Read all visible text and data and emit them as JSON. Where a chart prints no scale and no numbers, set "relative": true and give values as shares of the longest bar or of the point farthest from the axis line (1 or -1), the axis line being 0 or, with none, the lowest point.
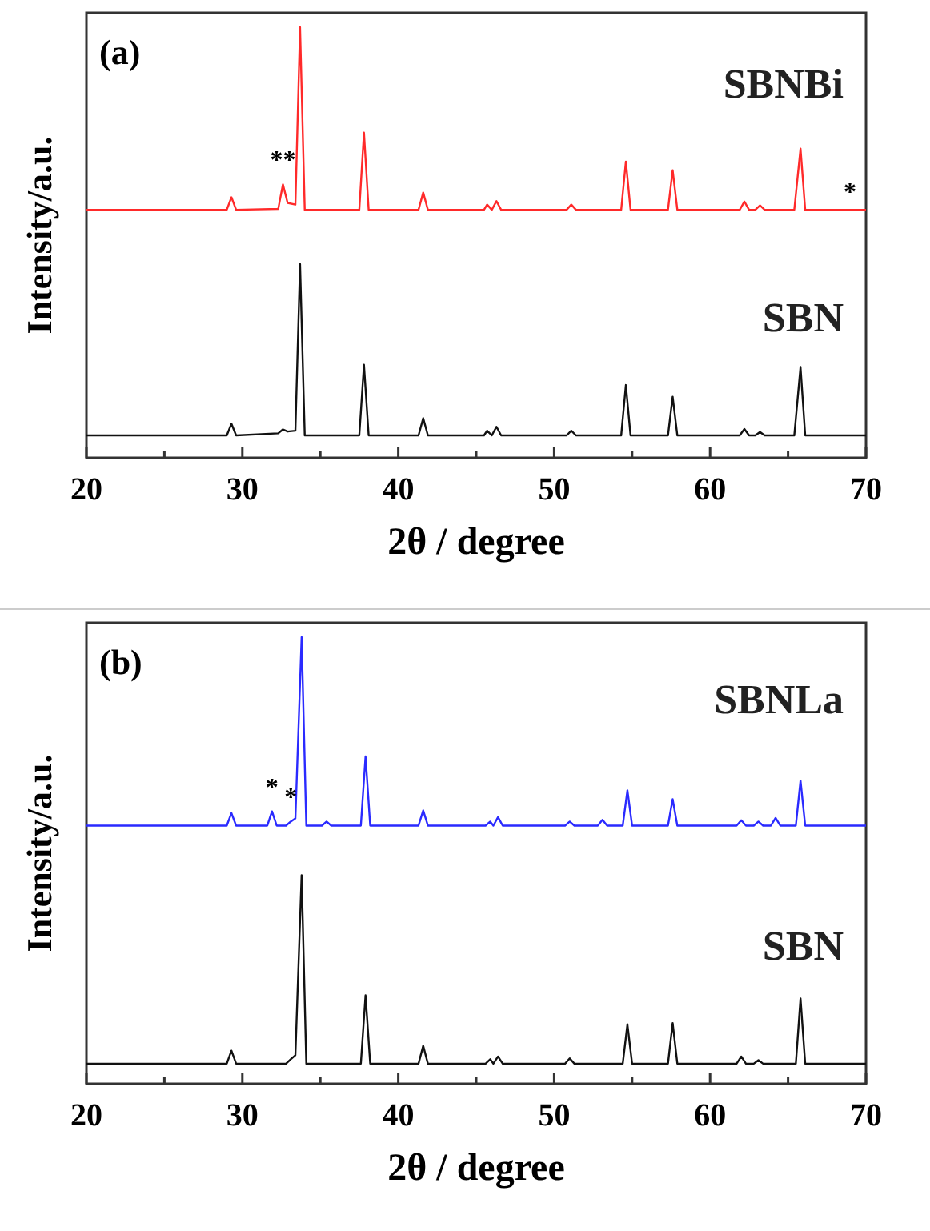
{
  "chart_data": [
    {
      "type": "line",
      "title": "(a)",
      "xlabel": "2θ / degree",
      "ylabel": "Intensity/a.u.",
      "relative": true,
      "legend": false,
      "tick_labels": "x",
      "marker": "none",
      "line_style": "solid",
      "xlim": [
        20,
        70
      ],
      "xticks": [
        20,
        {
          "value": 25,
          "label": null
        },
        30,
        {
          "value": 35,
          "label": null
        },
        40,
        {
          "value": 45,
          "label": null
        },
        50,
        {
          "value": 55,
          "label": null
        },
        60,
        {
          "value": 65,
          "label": null
        },
        70
      ],
      "x": [
        20,
        29.0,
        29.3,
        29.6,
        32.3,
        32.6,
        32.9,
        33.4,
        33.7,
        34.0,
        37.5,
        37.8,
        38.1,
        41.3,
        41.6,
        41.9,
        45.5,
        45.7,
        46.0,
        46.3,
        46.6,
        50.8,
        51.1,
        51.4,
        54.3,
        54.6,
        54.9,
        57.3,
        57.6,
        57.9,
        61.9,
        62.2,
        62.5,
        62.9,
        63.2,
        63.5,
        65.4,
        65.8,
        66.1,
        70
      ],
      "series": [
        {
          "name": "SBNBi",
          "color": "#ff2a2a",
          "values": [
            0.576,
            0.576,
            0.605,
            0.576,
            0.578,
            0.635,
            0.592,
            0.588,
            1,
            0.576,
            0.576,
            0.755,
            0.576,
            0.576,
            0.616,
            0.576,
            0.576,
            0.588,
            0.576,
            0.596,
            0.576,
            0.576,
            0.588,
            0.576,
            0.576,
            0.688,
            0.576,
            0.576,
            0.668,
            0.576,
            0.576,
            0.595,
            0.576,
            0.576,
            0.586,
            0.576,
            0.576,
            0.718,
            0.576,
            0.576
          ]
        },
        {
          "name": "SBN",
          "color": "#111111",
          "values": [
            0.052,
            0.052,
            0.079,
            0.052,
            0.057,
            0.066,
            0.061,
            0.063,
            0.45,
            0.052,
            0.052,
            0.216,
            0.052,
            0.052,
            0.092,
            0.052,
            0.052,
            0.063,
            0.052,
            0.072,
            0.052,
            0.052,
            0.063,
            0.052,
            0.052,
            0.169,
            0.052,
            0.052,
            0.142,
            0.052,
            0.052,
            0.067,
            0.052,
            0.052,
            0.06,
            0.052,
            0.052,
            0.211,
            0.052,
            0.052
          ]
        }
      ],
      "annotations": [
        {
          "text": "**",
          "x": 32.6,
          "y": 0.635
        },
        "*"
      ]
    },
    {
      "type": "line",
      "title": "(b)",
      "xlabel": "2θ / degree",
      "ylabel": "Intensity/a.u.",
      "relative": true,
      "legend": false,
      "tick_labels": "x",
      "marker": "none",
      "line_style": "solid",
      "xlim": [
        20,
        70
      ],
      "xticks": [
        20,
        {
          "value": 25,
          "label": null
        },
        30,
        {
          "value": 35,
          "label": null
        },
        40,
        {
          "value": 45,
          "label": null
        },
        50,
        {
          "value": 55,
          "label": null
        },
        60,
        {
          "value": 65,
          "label": null
        },
        70
      ],
      "x": [
        20,
        29.0,
        29.3,
        29.6,
        31.6,
        31.9,
        32.2,
        32.8,
        33.1,
        33.4,
        33.8,
        34.1,
        35.1,
        35.4,
        35.7,
        37.6,
        37.9,
        38.2,
        41.3,
        41.6,
        41.9,
        45.6,
        45.9,
        46.1,
        46.4,
        46.7,
        50.7,
        51.0,
        51.3,
        52.8,
        53.1,
        53.4,
        54.4,
        54.7,
        55.0,
        57.3,
        57.6,
        57.9,
        61.7,
        62.0,
        62.3,
        62.8,
        63.1,
        63.4,
        63.9,
        64.2,
        64.5,
        65.5,
        65.8,
        66.1,
        70
      ],
      "series": [
        {
          "name": "SBNLa",
          "color": "#2a2aff",
          "values": [
            0.578,
            0.578,
            0.606,
            0.578,
            0.578,
            0.61,
            0.578,
            0.578,
            0.587,
            0.594,
            1,
            0.578,
            0.578,
            0.587,
            0.578,
            0.578,
            0.733,
            0.578,
            0.578,
            0.612,
            0.578,
            0.578,
            0.587,
            0.578,
            0.597,
            0.578,
            0.578,
            0.587,
            0.578,
            0.578,
            0.591,
            0.578,
            0.578,
            0.657,
            0.578,
            0.578,
            0.637,
            0.578,
            0.578,
            0.59,
            0.578,
            0.578,
            0.587,
            0.578,
            0.578,
            0.595,
            0.578,
            0.578,
            0.679,
            0.578,
            0.578
          ]
        },
        {
          "name": "SBN",
          "color": "#111111",
          "values": [
            0.045,
            0.045,
            0.074,
            0.045,
            0.045,
            0.045,
            0.045,
            0.045,
            0.055,
            0.064,
            0.467,
            0.045,
            0.045,
            0.045,
            0.045,
            0.045,
            0.198,
            0.045,
            0.045,
            0.085,
            0.045,
            0.045,
            0.055,
            0.045,
            0.061,
            0.045,
            0.045,
            0.057,
            0.045,
            0.045,
            0.045,
            0.045,
            0.045,
            0.133,
            0.045,
            0.045,
            0.136,
            0.045,
            0.045,
            0.061,
            0.045,
            0.045,
            0.053,
            0.045,
            0.045,
            0.045,
            0.045,
            0.045,
            0.191,
            0.045,
            0.045
          ]
        }
      ],
      "annotations": [
        {
          "text": "*",
          "x": 31.9,
          "y": 0.61
        },
        {
          "text": "*",
          "x": 33.1,
          "y": 0.587
        }
      ]
    }
  ]
}
